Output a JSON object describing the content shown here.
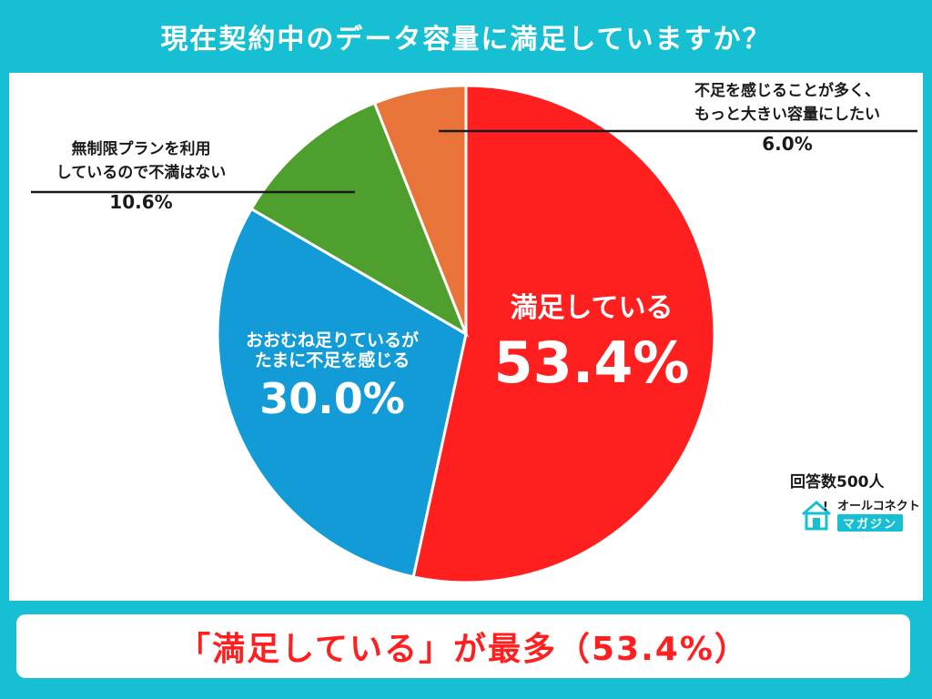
{
  "title": "現在契約中のデータ容量に満足していますか？",
  "colors": {
    "background": "#16bfd2",
    "satisfied": "#ff1f1f",
    "mostly": "#129bd6",
    "unlimited": "#4f9f2e",
    "want_more": "#e9743a",
    "conclusion_text": "#ff1f1f"
  },
  "chart_data": {
    "type": "pie",
    "title": "現在契約中のデータ容量に満足していますか？",
    "slices": [
      {
        "label": "満足している",
        "value": 53.4,
        "value_label": "53.4%",
        "color": "#ff1f1f"
      },
      {
        "label": "おおむね足りているがたまに不足を感じる",
        "label_lines": [
          "おおむね足りているが",
          "たまに不足を感じる"
        ],
        "value": 30.0,
        "value_label": "30.0%",
        "color": "#129bd6"
      },
      {
        "label": "無制限プランを利用しているので不満はない",
        "label_lines": [
          "無制限プランを利用",
          "しているので不満はない"
        ],
        "value": 10.6,
        "value_label": "10.6%",
        "color": "#4f9f2e"
      },
      {
        "label": "不足を感じることが多く、もっと大きい容量にしたい",
        "label_lines": [
          "不足を感じることが多く、",
          "もっと大きい容量にしたい"
        ],
        "value": 6.0,
        "value_label": "6.0%",
        "color": "#e9743a"
      }
    ]
  },
  "respondents": "回答数500人",
  "logo": {
    "line1": "オールコネクト",
    "line2": "マガジン",
    "icon": "house-icon"
  },
  "conclusion": "「満足している」が最多（53.4%）"
}
